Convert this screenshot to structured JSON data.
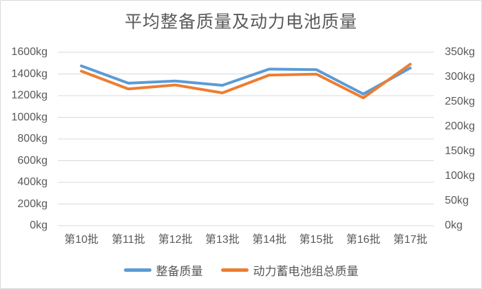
{
  "chart_data": {
    "type": "line",
    "title": "平均整备质量及动力电池质量",
    "categories": [
      "第10批",
      "第11批",
      "第12批",
      "第13批",
      "第14批",
      "第15批",
      "第16批",
      "第17批"
    ],
    "series": [
      {
        "name": "整备质量",
        "axis": "left",
        "color": "#5B9BD5",
        "values": [
          1475,
          1315,
          1335,
          1295,
          1445,
          1440,
          1215,
          1455
        ]
      },
      {
        "name": "动力蓄电池组总质量",
        "axis": "right",
        "color": "#ED7D31",
        "values": [
          312,
          276,
          284,
          268,
          304,
          306,
          258,
          326
        ]
      }
    ],
    "left_axis": {
      "min": 0,
      "max": 1600,
      "unit": "kg",
      "tick_values": [
        0,
        200,
        400,
        600,
        800,
        1000,
        1200,
        1400,
        1600
      ],
      "tick_labels": [
        "0kg",
        "200kg",
        "400kg",
        "600kg",
        "800kg",
        "1000kg",
        "1200kg",
        "1400kg",
        "1600kg"
      ]
    },
    "right_axis": {
      "min": 0,
      "max": 350,
      "unit": "kg",
      "tick_values": [
        0,
        50,
        100,
        150,
        200,
        250,
        300,
        350
      ],
      "tick_labels": [
        "0kg",
        "50kg",
        "100kg",
        "150kg",
        "200kg",
        "250kg",
        "300kg",
        "350kg"
      ]
    },
    "grid": true,
    "legend_position": "bottom",
    "colors": {
      "grid_line": "#D9D9D9",
      "axis_text": "#595959",
      "title_text": "#595959",
      "border": "#D9D9D9",
      "background": "#FFFFFF"
    }
  }
}
